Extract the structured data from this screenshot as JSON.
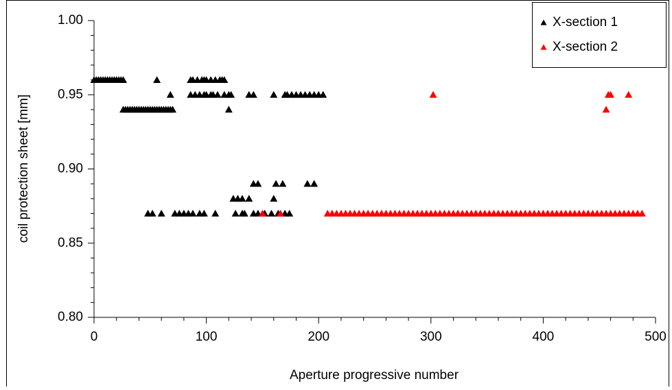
{
  "chart_data": {
    "type": "scatter",
    "xlabel": "Aperture progressive number",
    "ylabel": "coil protection sheet [mm]",
    "xlim": [
      0,
      500
    ],
    "xticks": [
      0,
      100,
      200,
      300,
      400,
      500
    ],
    "xminorticks": [
      20,
      40,
      60,
      80,
      120,
      140,
      160,
      180,
      220,
      240,
      260,
      280,
      320,
      340,
      360,
      380,
      420,
      440,
      460,
      480
    ],
    "ylim": [
      0.8,
      1.0
    ],
    "yticks": [
      {
        "value": 0.8,
        "label": "0.80"
      },
      0.85,
      {
        "value": 0.9,
        "label": "0.90"
      },
      0.95,
      {
        "value": 1.0,
        "label": "1.00"
      }
    ],
    "yminorticks": [
      0.81,
      0.82,
      0.83,
      0.84,
      0.86,
      0.87,
      0.88,
      0.89,
      0.91,
      0.92,
      0.93,
      0.94,
      0.96,
      0.97,
      0.98,
      0.99
    ],
    "legend": "upper right",
    "series": [
      {
        "name": "X-section 1",
        "color": "#000000",
        "x": [
          0,
          2,
          4,
          6,
          8,
          10,
          12,
          14,
          16,
          18,
          20,
          22,
          24,
          26,
          26,
          28,
          30,
          32,
          34,
          36,
          38,
          40,
          42,
          44,
          46,
          48,
          50,
          52,
          54,
          56,
          58,
          60,
          62,
          64,
          66,
          68,
          70,
          56,
          68,
          86,
          88,
          92,
          96,
          98,
          100,
          104,
          108,
          112,
          114,
          116,
          86,
          90,
          94,
          98,
          100,
          104,
          106,
          110,
          116,
          120,
          122,
          138,
          142,
          160,
          170,
          172,
          176,
          180,
          184,
          188,
          192,
          196,
          200,
          204,
          120,
          48,
          52,
          60,
          72,
          76,
          80,
          84,
          88,
          94,
          98,
          108,
          126,
          132,
          134,
          142,
          146,
          152,
          158,
          164,
          170,
          174,
          124,
          128,
          132,
          138,
          160,
          142,
          146,
          162,
          168,
          190,
          196
        ],
        "values": [
          0.96,
          0.96,
          0.96,
          0.96,
          0.96,
          0.96,
          0.96,
          0.96,
          0.96,
          0.96,
          0.96,
          0.96,
          0.96,
          0.96,
          0.94,
          0.94,
          0.94,
          0.94,
          0.94,
          0.94,
          0.94,
          0.94,
          0.94,
          0.94,
          0.94,
          0.94,
          0.94,
          0.94,
          0.94,
          0.94,
          0.94,
          0.94,
          0.94,
          0.94,
          0.94,
          0.94,
          0.94,
          0.96,
          0.95,
          0.96,
          0.96,
          0.96,
          0.96,
          0.96,
          0.96,
          0.96,
          0.96,
          0.96,
          0.96,
          0.96,
          0.95,
          0.95,
          0.95,
          0.95,
          0.95,
          0.95,
          0.95,
          0.95,
          0.95,
          0.95,
          0.95,
          0.95,
          0.95,
          0.95,
          0.95,
          0.95,
          0.95,
          0.95,
          0.95,
          0.95,
          0.95,
          0.95,
          0.95,
          0.95,
          0.94,
          0.87,
          0.87,
          0.87,
          0.87,
          0.87,
          0.87,
          0.87,
          0.87,
          0.87,
          0.87,
          0.87,
          0.87,
          0.87,
          0.87,
          0.87,
          0.87,
          0.87,
          0.87,
          0.87,
          0.87,
          0.87,
          0.88,
          0.88,
          0.88,
          0.88,
          0.88,
          0.89,
          0.89,
          0.89,
          0.89,
          0.89,
          0.89
        ]
      },
      {
        "name": "X-section 2",
        "color": "#ff0000",
        "x": [
          150,
          166,
          208,
          212,
          216,
          220,
          224,
          228,
          232,
          236,
          240,
          244,
          248,
          252,
          256,
          260,
          264,
          268,
          272,
          276,
          280,
          284,
          288,
          292,
          296,
          300,
          304,
          308,
          312,
          316,
          320,
          324,
          328,
          332,
          336,
          340,
          344,
          348,
          352,
          356,
          360,
          364,
          368,
          372,
          376,
          380,
          384,
          388,
          392,
          396,
          400,
          404,
          408,
          412,
          416,
          420,
          424,
          428,
          432,
          436,
          440,
          444,
          448,
          452,
          456,
          460,
          464,
          468,
          472,
          476,
          480,
          484,
          488,
          302,
          456,
          458,
          460,
          476
        ],
        "values": [
          0.87,
          0.87,
          0.87,
          0.87,
          0.87,
          0.87,
          0.87,
          0.87,
          0.87,
          0.87,
          0.87,
          0.87,
          0.87,
          0.87,
          0.87,
          0.87,
          0.87,
          0.87,
          0.87,
          0.87,
          0.87,
          0.87,
          0.87,
          0.87,
          0.87,
          0.87,
          0.87,
          0.87,
          0.87,
          0.87,
          0.87,
          0.87,
          0.87,
          0.87,
          0.87,
          0.87,
          0.87,
          0.87,
          0.87,
          0.87,
          0.87,
          0.87,
          0.87,
          0.87,
          0.87,
          0.87,
          0.87,
          0.87,
          0.87,
          0.87,
          0.87,
          0.87,
          0.87,
          0.87,
          0.87,
          0.87,
          0.87,
          0.87,
          0.87,
          0.87,
          0.87,
          0.87,
          0.87,
          0.87,
          0.87,
          0.87,
          0.87,
          0.87,
          0.87,
          0.87,
          0.87,
          0.87,
          0.87,
          0.95,
          0.94,
          0.95,
          0.95,
          0.95
        ]
      }
    ]
  }
}
